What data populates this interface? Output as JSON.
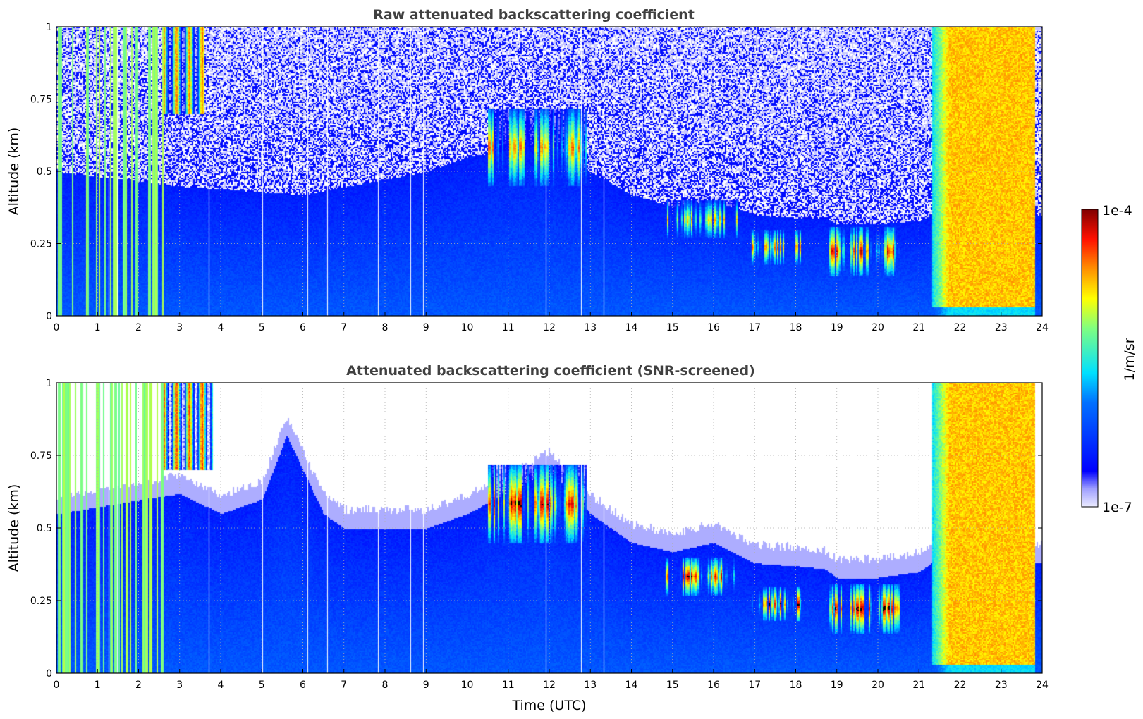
{
  "chart_data": [
    {
      "type": "heatmap",
      "title": "Raw attenuated backscattering coefficient",
      "xlabel": "",
      "ylabel": "Altitude (km)",
      "xlim": [
        0,
        24
      ],
      "ylim": [
        0,
        1
      ],
      "xticks": [
        "0",
        "1",
        "2",
        "3",
        "4",
        "5",
        "6",
        "7",
        "8",
        "9",
        "10",
        "11",
        "12",
        "13",
        "14",
        "15",
        "16",
        "17",
        "18",
        "19",
        "20",
        "21",
        "22",
        "23",
        "24"
      ],
      "yticks": [
        "0",
        "0.25",
        "0.5",
        "0.75",
        "1"
      ],
      "grid": true,
      "screened": false,
      "features": [
        {
          "kind": "boundary_layer_top_km",
          "times": [
            0,
            3,
            6,
            9,
            10,
            12,
            13,
            14,
            15,
            16,
            17,
            18,
            18.7,
            19,
            20,
            21,
            21.3
          ],
          "values": [
            0.5,
            0.45,
            0.42,
            0.5,
            0.55,
            0.6,
            0.5,
            0.42,
            0.38,
            0.4,
            0.35,
            0.34,
            0.34,
            0.32,
            0.32,
            0.33,
            0.35
          ]
        },
        {
          "kind": "cloud_band",
          "t0": 10.5,
          "t1": 12.9,
          "z0": 0.45,
          "z1": 0.72,
          "intensity": 0.85
        },
        {
          "kind": "cloud_band",
          "t0": 14.8,
          "t1": 16.6,
          "z0": 0.27,
          "z1": 0.4,
          "intensity": 0.8
        },
        {
          "kind": "cloud_band",
          "t0": 16.9,
          "t1": 18.1,
          "z0": 0.18,
          "z1": 0.3,
          "intensity": 0.85
        },
        {
          "kind": "cloud_band",
          "t0": 18.8,
          "t1": 20.5,
          "z0": 0.14,
          "z1": 0.31,
          "intensity": 0.97
        },
        {
          "kind": "precip_column",
          "t0": 21.3,
          "t1": 23.8,
          "intensity": 0.75
        },
        {
          "kind": "high_region",
          "t0": 2.6,
          "t1": 3.6,
          "z0": 0.7,
          "z1": 1.0,
          "intensity": 0.8
        }
      ]
    },
    {
      "type": "heatmap",
      "title": "Attenuated backscattering coefficient (SNR-screened)",
      "xlabel": "Time (UTC)",
      "ylabel": "Altitude (km)",
      "xlim": [
        0,
        24
      ],
      "ylim": [
        0,
        1
      ],
      "xticks": [
        "0",
        "1",
        "2",
        "3",
        "4",
        "5",
        "6",
        "7",
        "8",
        "9",
        "10",
        "11",
        "12",
        "13",
        "14",
        "15",
        "16",
        "17",
        "18",
        "19",
        "20",
        "21",
        "22",
        "23",
        "24"
      ],
      "yticks": [
        "0",
        "0.25",
        "0.5",
        "0.75",
        "1"
      ],
      "grid": true,
      "screened": true,
      "features": [
        {
          "kind": "boundary_layer_top_km",
          "times": [
            0,
            3,
            4,
            5,
            5.6,
            6.5,
            7,
            9,
            10,
            12,
            13,
            14,
            15,
            16,
            17,
            18,
            18.7,
            19,
            20,
            21,
            21.3
          ],
          "values": [
            0.55,
            0.62,
            0.55,
            0.6,
            0.82,
            0.55,
            0.5,
            0.5,
            0.55,
            0.7,
            0.55,
            0.45,
            0.42,
            0.45,
            0.38,
            0.37,
            0.36,
            0.33,
            0.33,
            0.35,
            0.38
          ]
        },
        {
          "kind": "cloud_band",
          "t0": 10.5,
          "t1": 12.9,
          "z0": 0.45,
          "z1": 0.72,
          "intensity": 0.98
        },
        {
          "kind": "cloud_band",
          "t0": 14.8,
          "t1": 16.6,
          "z0": 0.27,
          "z1": 0.4,
          "intensity": 0.97
        },
        {
          "kind": "cloud_band",
          "t0": 16.9,
          "t1": 18.1,
          "z0": 0.18,
          "z1": 0.3,
          "intensity": 0.99
        },
        {
          "kind": "cloud_band",
          "t0": 18.8,
          "t1": 20.5,
          "z0": 0.14,
          "z1": 0.31,
          "intensity": 1.0
        },
        {
          "kind": "precip_column",
          "t0": 21.3,
          "t1": 23.8,
          "intensity": 0.75
        },
        {
          "kind": "high_region",
          "t0": 2.6,
          "t1": 3.8,
          "z0": 0.7,
          "z1": 1.0,
          "intensity": 0.85
        }
      ]
    }
  ],
  "colorbar": {
    "label": "1/m/sr",
    "top_label": "1e-4",
    "bottom_label": "1e-7",
    "colormap": "jet",
    "scale": "log",
    "range": [
      1e-07,
      0.0001
    ]
  },
  "colors": {
    "title": "#404040",
    "grid": "#b0b0b0",
    "low": "#e8e8ff",
    "blue": "#0022ff",
    "high": "#800000"
  }
}
